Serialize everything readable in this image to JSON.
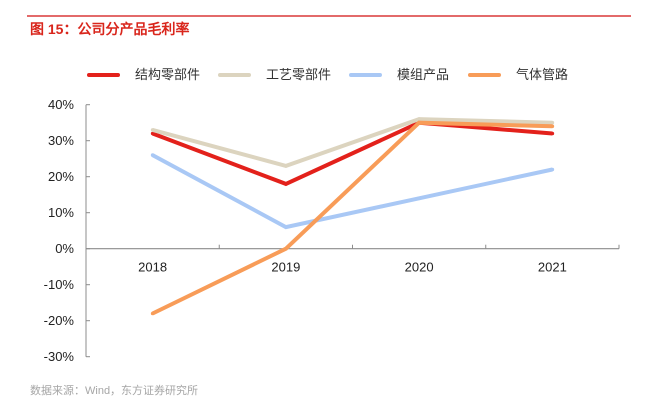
{
  "header": {
    "figure_title": "图 15：公司分产品毛利率"
  },
  "footer": {
    "source": "数据来源：Wind，东方证券研究所"
  },
  "chart_data": {
    "type": "line",
    "title": "图 15：公司分产品毛利率",
    "xlabel": "",
    "ylabel": "",
    "categories": [
      "2018",
      "2019",
      "2020",
      "2021"
    ],
    "ylim": [
      -30,
      40
    ],
    "yticks": [
      40,
      30,
      20,
      10,
      0,
      -10,
      -20,
      -30
    ],
    "ytick_labels": [
      "40%",
      "30%",
      "20%",
      "10%",
      "0%",
      "-10%",
      "-20%",
      "-30%"
    ],
    "grid": false,
    "legend_position": "top",
    "value_unit": "%",
    "series": [
      {
        "name": "结构零部件",
        "color": "#e3211b",
        "values": [
          32,
          18,
          35,
          32
        ]
      },
      {
        "name": "工艺零部件",
        "color": "#dcd4bf",
        "values": [
          33,
          23,
          36,
          35
        ]
      },
      {
        "name": "模组产品",
        "color": "#a9c8f5",
        "values": [
          26,
          6,
          14,
          22
        ]
      },
      {
        "name": "气体管路",
        "color": "#f89c58",
        "values": [
          -18,
          0,
          35,
          34
        ]
      }
    ]
  }
}
